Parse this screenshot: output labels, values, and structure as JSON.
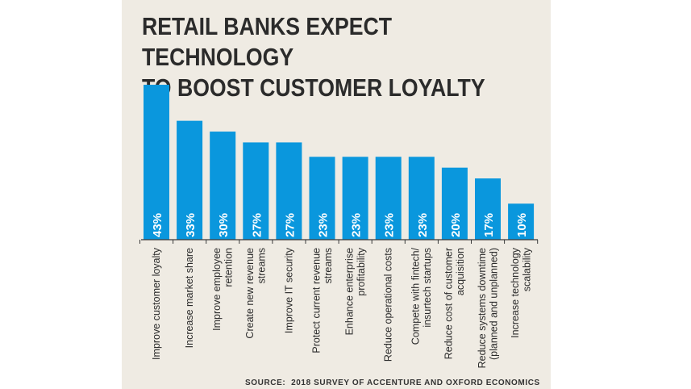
{
  "title": "RETAIL BANKS EXPECT TECHNOLOGY\nTO BOOST CUSTOMER LOYALTY",
  "source": {
    "label": "SOURCE:",
    "text": "2018 SURVEY OF ACCENTURE AND OXFORD ECONOMICS"
  },
  "colors": {
    "bar": "#0a97dd",
    "bar_label": "#ffffff",
    "background": "#efebe3",
    "text": "#2b2b2b"
  },
  "chart_data": {
    "type": "bar",
    "title": "RETAIL BANKS EXPECT TECHNOLOGY TO BOOST CUSTOMER LOYALTY",
    "categories": [
      "Improve customer loyalty",
      "Increase market share",
      "Improve employee retention",
      "Create new revenue streams",
      "Improve IT security",
      "Protect current revenue streams",
      "Enhance enterprise profitability",
      "Reduce operational costs",
      "Compete with fintech/ insurtech startups",
      "Reduce cost of customer acquisition",
      "Reduce systems downtime (planned and unplanned)",
      "Increase technology scalability"
    ],
    "category_lines": [
      [
        "Improve customer loyalty"
      ],
      [
        "Increase market share"
      ],
      [
        "Improve employee",
        "retention"
      ],
      [
        "Create new revenue",
        "streams"
      ],
      [
        "Improve IT security"
      ],
      [
        "Protect current revenue",
        "streams"
      ],
      [
        "Enhance enterprise",
        "profitability"
      ],
      [
        "Reduce operational costs"
      ],
      [
        "Compete with fintech/",
        "insurtech startups"
      ],
      [
        "Reduce cost of customer",
        "acquisition"
      ],
      [
        "Reduce systems downtime",
        "(planned and unplanned)"
      ],
      [
        "Increase technology",
        "scalability"
      ]
    ],
    "values": [
      43,
      33,
      30,
      27,
      27,
      23,
      23,
      23,
      23,
      20,
      17,
      10
    ],
    "value_labels": [
      "43%",
      "33%",
      "30%",
      "27%",
      "27%",
      "23%",
      "23%",
      "23%",
      "23%",
      "20%",
      "17%",
      "10%"
    ],
    "unit": "%",
    "xlabel": "",
    "ylabel": "",
    "ylim": [
      0,
      43
    ],
    "grid": false,
    "legend": "none"
  }
}
